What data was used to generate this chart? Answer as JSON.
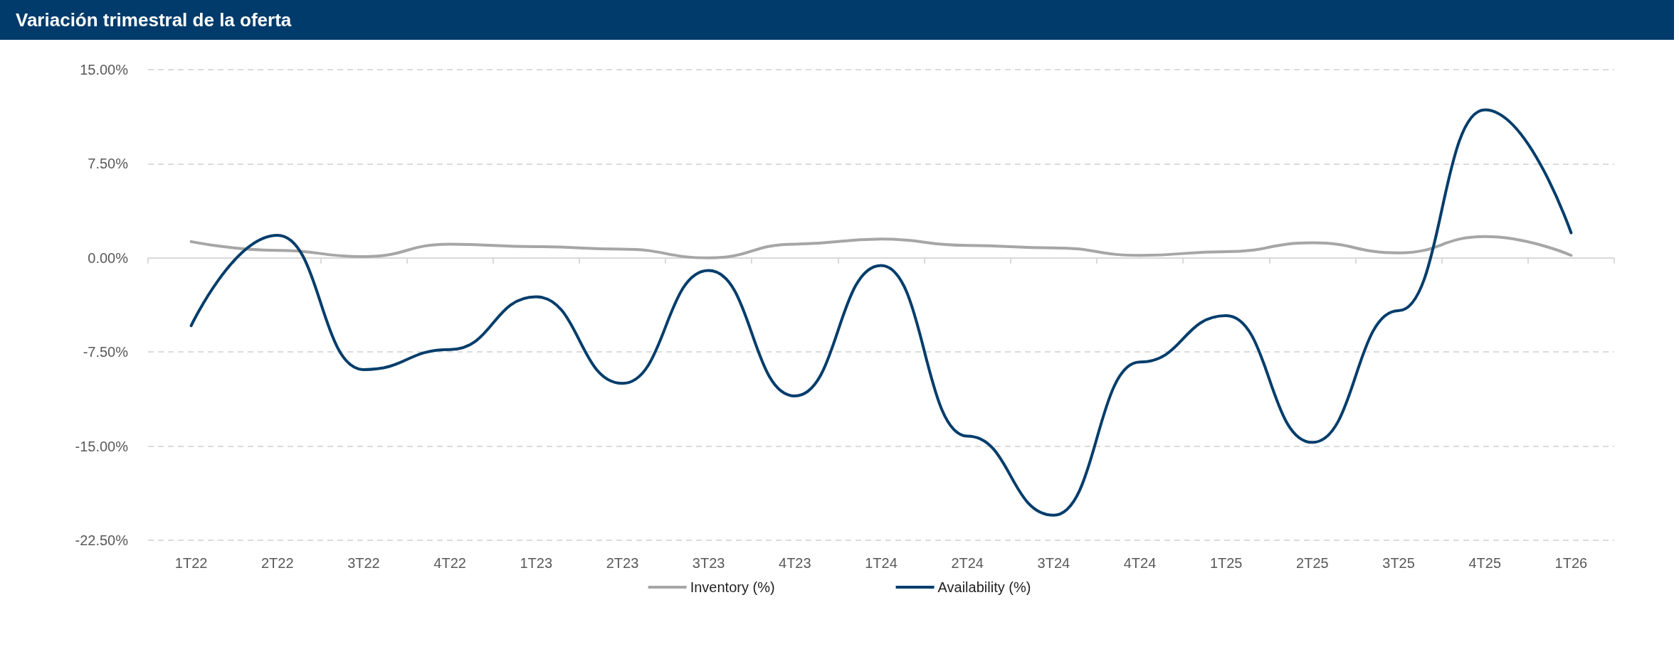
{
  "chart_data": {
    "type": "line",
    "title": "Variación trimestral de la oferta",
    "categories": [
      "1T22",
      "2T22",
      "3T22",
      "4T22",
      "1T23",
      "2T23",
      "3T23",
      "4T23",
      "1T24",
      "2T24",
      "3T24",
      "4T24",
      "1T25",
      "2T25",
      "3T25",
      "4T25",
      "1T26"
    ],
    "series": [
      {
        "name": "Inventory (%)",
        "color": "#a6a6a6",
        "values": [
          1.3,
          0.6,
          0.1,
          1.1,
          0.9,
          0.7,
          0.0,
          1.1,
          1.5,
          1.0,
          0.8,
          0.2,
          0.5,
          1.2,
          0.4,
          1.7,
          0.2
        ]
      },
      {
        "name": "Availability (%)",
        "color": "#003d6b",
        "values": [
          -5.4,
          1.8,
          -8.9,
          -7.3,
          -3.1,
          -10.0,
          -1.0,
          -11.0,
          -0.6,
          -14.2,
          -20.5,
          -8.3,
          -4.6,
          -14.7,
          -4.2,
          11.8,
          2.0
        ]
      }
    ],
    "ylim": [
      -22.5,
      15
    ],
    "yticks": [
      {
        "value": -22.5,
        "label": "-22.50%"
      },
      {
        "value": -15,
        "label": "-15.00%"
      },
      {
        "value": -7.5,
        "label": "-7.50%"
      },
      {
        "value": 0,
        "label": "0.00%"
      },
      {
        "value": 7.5,
        "label": "7.50%"
      },
      {
        "value": 15,
        "label": "15.00%"
      }
    ],
    "grid": "y",
    "legend": "bottom",
    "marker": "none",
    "line_style": "solid"
  }
}
